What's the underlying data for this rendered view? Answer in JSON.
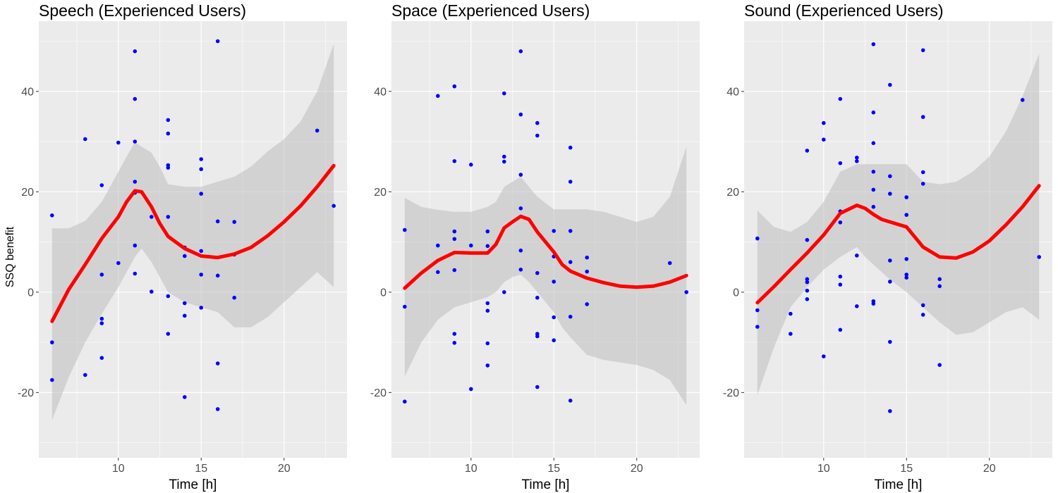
{
  "colors": {
    "panel_background": "#ebebeb",
    "grid_major": "#ffffff",
    "points": "#0000ff",
    "smooth_line": "#ff0000",
    "confidence_band": "#bdbdbd"
  },
  "ylabel": "SSQ benefit",
  "chart_data": [
    {
      "type": "scatter",
      "title": "Speech (Experienced Users)",
      "xlabel": "Time [h]",
      "ylabel": "SSQ benefit",
      "xlim": [
        5.2,
        23.8
      ],
      "ylim": [
        -33,
        54
      ],
      "xticks": [
        10,
        15,
        20
      ],
      "yticks": [
        -20,
        0,
        20,
        40
      ],
      "grid": true,
      "points": [
        [
          6,
          15.3
        ],
        [
          6,
          -10
        ],
        [
          6,
          -17.5
        ],
        [
          8,
          30.5
        ],
        [
          8,
          -16.5
        ],
        [
          9,
          21.3
        ],
        [
          9,
          3.5
        ],
        [
          9,
          -5.3
        ],
        [
          9,
          -6.2
        ],
        [
          9,
          -13.1
        ],
        [
          10,
          29.8
        ],
        [
          10,
          5.8
        ],
        [
          11,
          48
        ],
        [
          11,
          38.5
        ],
        [
          11,
          30
        ],
        [
          11,
          22
        ],
        [
          11,
          19.8
        ],
        [
          11,
          9.3
        ],
        [
          11,
          3.7
        ],
        [
          12,
          15
        ],
        [
          12,
          0.1
        ],
        [
          13,
          34.3
        ],
        [
          13,
          31.6
        ],
        [
          13,
          25.3
        ],
        [
          13,
          24.8
        ],
        [
          13,
          15
        ],
        [
          13,
          -0.8
        ],
        [
          13,
          -8.3
        ],
        [
          14,
          8.9
        ],
        [
          14,
          7.2
        ],
        [
          14,
          -2.2
        ],
        [
          14,
          -4.7
        ],
        [
          14,
          -20.9
        ],
        [
          15,
          26.5
        ],
        [
          15,
          24.5
        ],
        [
          15,
          19.6
        ],
        [
          15,
          8.2
        ],
        [
          15,
          3.5
        ],
        [
          15,
          -3.1
        ],
        [
          16,
          50
        ],
        [
          16,
          14.1
        ],
        [
          16,
          3.3
        ],
        [
          16,
          -14.2
        ],
        [
          16,
          -23.3
        ],
        [
          17,
          14
        ],
        [
          17,
          7.5
        ],
        [
          17,
          -1.1
        ],
        [
          22,
          32.2
        ],
        [
          23,
          17.2
        ]
      ],
      "smooth": {
        "x": [
          6,
          7,
          8,
          9,
          10,
          10.5,
          11,
          11.4,
          12,
          12.5,
          13,
          14,
          15,
          16,
          17,
          18,
          19,
          20,
          21,
          22,
          23
        ],
        "y": [
          -5.8,
          0.5,
          5.5,
          10.7,
          15,
          18,
          20.2,
          20,
          17,
          13.7,
          11.1,
          8.7,
          7.2,
          6.9,
          7.6,
          8.9,
          11.2,
          14,
          17.2,
          21,
          25.2
        ],
        "lower": [
          -25.5,
          -17,
          -10,
          -4.3,
          1,
          4,
          7,
          8.7,
          6,
          3,
          0,
          -2,
          -3,
          -4,
          -7,
          -7,
          -5,
          -2,
          1,
          4,
          1
        ],
        "upper": [
          12.7,
          12.7,
          14.2,
          18,
          24,
          27,
          29.9,
          29,
          27.8,
          25,
          21.5,
          21,
          21,
          22,
          23,
          25,
          28,
          30.5,
          34,
          40,
          49.5
        ]
      }
    },
    {
      "type": "scatter",
      "title": "Space (Experienced Users)",
      "xlabel": "Time [h]",
      "xlim": [
        5.2,
        23.8
      ],
      "ylim": [
        -33,
        54
      ],
      "xticks": [
        10,
        15,
        20
      ],
      "yticks": [
        -20,
        0,
        20,
        40
      ],
      "grid": true,
      "points": [
        [
          6,
          12.4
        ],
        [
          6,
          -2.9
        ],
        [
          6,
          -21.8
        ],
        [
          8,
          39.1
        ],
        [
          8,
          9.3
        ],
        [
          8,
          4
        ],
        [
          9,
          41
        ],
        [
          9,
          26.1
        ],
        [
          9,
          12.1
        ],
        [
          9,
          10.6
        ],
        [
          9,
          4.4
        ],
        [
          9,
          -8.3
        ],
        [
          9,
          -10.1
        ],
        [
          10,
          25.4
        ],
        [
          10,
          9.3
        ],
        [
          10,
          -19.3
        ],
        [
          11,
          12.1
        ],
        [
          11,
          9.2
        ],
        [
          11,
          -2.2
        ],
        [
          11,
          -3.7
        ],
        [
          11,
          -10.2
        ],
        [
          11,
          -14.6
        ],
        [
          12,
          39.6
        ],
        [
          12,
          27
        ],
        [
          12,
          26
        ],
        [
          12,
          0
        ],
        [
          13,
          48
        ],
        [
          13,
          35.4
        ],
        [
          13,
          23.4
        ],
        [
          13,
          16.7
        ],
        [
          13,
          8.3
        ],
        [
          13,
          4.5
        ],
        [
          14,
          33.7
        ],
        [
          14,
          31.2
        ],
        [
          14,
          3.8
        ],
        [
          14,
          -1.1
        ],
        [
          14,
          -8.3
        ],
        [
          14,
          -8.8
        ],
        [
          14,
          -18.9
        ],
        [
          15,
          12.2
        ],
        [
          15,
          7.1
        ],
        [
          15,
          2.1
        ],
        [
          15,
          -5
        ],
        [
          15,
          -9.6
        ],
        [
          16,
          28.8
        ],
        [
          16,
          22
        ],
        [
          16,
          12.2
        ],
        [
          16,
          6
        ],
        [
          16,
          -4.9
        ],
        [
          16,
          -21.6
        ],
        [
          17,
          6.9
        ],
        [
          17,
          4.1
        ],
        [
          17,
          -2.4
        ],
        [
          22,
          5.8
        ],
        [
          23,
          0
        ]
      ],
      "smooth": {
        "x": [
          6,
          7,
          8,
          9,
          10,
          11,
          11.5,
          12,
          12.5,
          13,
          13.5,
          14,
          15,
          15.5,
          16,
          17,
          18,
          19,
          20,
          21,
          22,
          23
        ],
        "y": [
          0.8,
          3.8,
          6.3,
          7.9,
          7.8,
          7.8,
          9.5,
          12.8,
          14,
          15.1,
          14.5,
          12,
          8,
          5.5,
          4.2,
          2.8,
          1.9,
          1.2,
          1,
          1.2,
          2,
          3.3
        ],
        "lower": [
          -16.8,
          -10,
          -5.5,
          -3,
          -2,
          -1,
          0,
          2,
          3,
          3.5,
          2,
          0,
          -4,
          -7,
          -9,
          -12.5,
          -13.5,
          -14,
          -14.5,
          -15.5,
          -17.5,
          -22.5
        ],
        "upper": [
          18.8,
          17,
          16.4,
          16,
          16,
          17,
          18,
          21,
          22,
          23,
          21,
          19,
          16.5,
          16.5,
          16.5,
          16.5,
          16,
          15,
          14,
          15,
          19,
          29
        ]
      }
    },
    {
      "type": "scatter",
      "title": "Sound (Experienced Users)",
      "xlabel": "Time [h]",
      "xlim": [
        5.2,
        23.8
      ],
      "ylim": [
        -33,
        54
      ],
      "xticks": [
        10,
        15,
        20
      ],
      "yticks": [
        -20,
        0,
        20,
        40
      ],
      "grid": true,
      "points": [
        [
          6,
          10.7
        ],
        [
          6,
          -3.6
        ],
        [
          6,
          -6.9
        ],
        [
          8,
          -4.3
        ],
        [
          8,
          -8.3
        ],
        [
          9,
          28.2
        ],
        [
          9,
          10.4
        ],
        [
          9,
          2.6
        ],
        [
          9,
          2
        ],
        [
          9,
          0.3
        ],
        [
          9,
          -1.4
        ],
        [
          10,
          33.7
        ],
        [
          10,
          30.4
        ],
        [
          10,
          -12.8
        ],
        [
          11,
          38.5
        ],
        [
          11,
          25.7
        ],
        [
          11,
          16.1
        ],
        [
          11,
          13.9
        ],
        [
          11,
          3.1
        ],
        [
          11,
          1.5
        ],
        [
          11,
          -7.5
        ],
        [
          12,
          26.8
        ],
        [
          12,
          26.1
        ],
        [
          12,
          7.3
        ],
        [
          12,
          -2.8
        ],
        [
          13,
          49.4
        ],
        [
          13,
          35.8
        ],
        [
          13,
          29.7
        ],
        [
          13,
          24
        ],
        [
          13,
          20.4
        ],
        [
          13,
          17
        ],
        [
          13,
          -1.8
        ],
        [
          13,
          -2.3
        ],
        [
          14,
          41.3
        ],
        [
          14,
          23.1
        ],
        [
          14,
          19.6
        ],
        [
          14,
          6.3
        ],
        [
          14,
          2.1
        ],
        [
          14,
          -9.9
        ],
        [
          14,
          -23.7
        ],
        [
          15,
          18.9
        ],
        [
          15,
          15.4
        ],
        [
          15,
          6.6
        ],
        [
          15,
          3.5
        ],
        [
          15,
          2.9
        ],
        [
          16,
          48.2
        ],
        [
          16,
          34.9
        ],
        [
          16,
          23.9
        ],
        [
          16,
          21.6
        ],
        [
          16,
          -2.6
        ],
        [
          16,
          -4.5
        ],
        [
          17,
          2.6
        ],
        [
          17,
          1.2
        ],
        [
          17,
          -14.5
        ],
        [
          22,
          38.3
        ],
        [
          23,
          7
        ]
      ],
      "smooth": {
        "x": [
          6,
          7,
          8,
          9,
          10,
          11,
          12,
          12.5,
          13,
          13.5,
          14,
          15,
          16,
          17,
          18,
          19,
          20,
          21,
          22,
          23
        ],
        "y": [
          -2.1,
          1.1,
          4.5,
          7.8,
          11.4,
          15.7,
          17.3,
          16.7,
          15.5,
          14.5,
          14,
          13,
          9,
          7,
          6.8,
          8,
          10.2,
          13.4,
          17,
          21.2
        ],
        "lower": [
          -20.5,
          -11,
          -3,
          1,
          4.5,
          7,
          9,
          7,
          5.5,
          4,
          2.5,
          0,
          -3,
          -6,
          -8.5,
          -8,
          -6,
          -4,
          -3,
          -5.5
        ],
        "upper": [
          16.3,
          13,
          12,
          14,
          18,
          24,
          25.5,
          25.5,
          25.5,
          25.5,
          25.5,
          25.5,
          22,
          21.5,
          22,
          24,
          27,
          32,
          39,
          47.5
        ]
      }
    }
  ]
}
